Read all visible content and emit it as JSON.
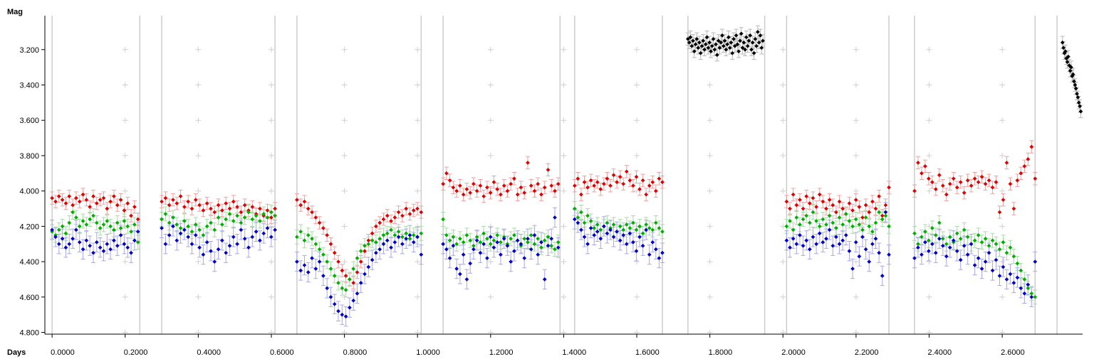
{
  "chart_data": {
    "type": "scatter",
    "title": "",
    "ylabel": "Mag",
    "xlabel": "Days",
    "xlim": [
      -0.01,
      2.82
    ],
    "ylim": [
      3.04,
      4.81
    ],
    "y_inverted": true,
    "x_ticks": [
      "0.0000",
      "0.2000",
      "0.4000",
      "0.6000",
      "0.8000",
      "1.0000",
      "1.2000",
      "1.4000",
      "1.6000",
      "1.8000",
      "2.0000",
      "2.2000",
      "2.4000",
      "2.6000"
    ],
    "y_ticks": [
      "3.200",
      "3.400",
      "3.600",
      "3.800",
      "4.000",
      "4.200",
      "4.400",
      "4.600",
      "4.800"
    ],
    "grid": true,
    "segment_bounds": [
      0.0,
      0.24,
      0.3,
      0.61,
      0.67,
      1.01,
      1.07,
      1.39,
      1.43,
      1.67,
      1.74,
      1.95,
      2.01,
      2.29,
      2.36,
      2.69,
      2.75
    ],
    "colors": {
      "red": "#e00000",
      "green": "#00b000",
      "blue": "#0000c8",
      "black": "#000000",
      "grid": "#d0d0d0",
      "bounds": "#cccccc"
    },
    "series": [
      {
        "color": "red",
        "segments": [
          {
            "x0": 0.0,
            "x1": 0.235,
            "mags": [
              4.04,
              4.06,
              4.03,
              4.05,
              4.07,
              4.03,
              4.08,
              4.04,
              4.06,
              4.02,
              4.05,
              4.09,
              4.03,
              4.07,
              4.05,
              4.04,
              4.1,
              4.06,
              4.03,
              4.08,
              4.05,
              4.11,
              4.07,
              4.14,
              4.09,
              4.16
            ]
          },
          {
            "x0": 0.3,
            "x1": 0.61,
            "mags": [
              4.06,
              4.04,
              4.08,
              4.05,
              4.07,
              4.03,
              4.09,
              4.06,
              4.1,
              4.05,
              4.08,
              4.11,
              4.07,
              4.1,
              4.12,
              4.08,
              4.11,
              4.07,
              4.1,
              4.06,
              4.09,
              4.12,
              4.08,
              4.11,
              4.09,
              4.13,
              4.1,
              4.14,
              4.11,
              4.15,
              4.1
            ]
          },
          {
            "x0": 0.67,
            "x1": 1.01,
            "mags": [
              4.05,
              4.08,
              4.06,
              4.1,
              4.12,
              4.15,
              4.18,
              4.21,
              4.25,
              4.3,
              4.35,
              4.4,
              4.45,
              4.48,
              4.5,
              4.52,
              4.46,
              4.4,
              4.34,
              4.28,
              4.24,
              4.2,
              4.18,
              4.16,
              4.14,
              4.17,
              4.15,
              4.12,
              4.14,
              4.1,
              4.13,
              4.11,
              4.1,
              4.12
            ]
          },
          {
            "x0": 1.07,
            "x1": 1.385,
            "mags": [
              3.96,
              3.9,
              3.94,
              3.98,
              4.0,
              3.97,
              4.02,
              3.99,
              4.01,
              3.96,
              4.0,
              3.97,
              4.03,
              3.98,
              4.01,
              3.95,
              3.99,
              4.02,
              3.97,
              4.0,
              3.96,
              3.93,
              4.02,
              3.98,
              4.01,
              3.84,
              3.97,
              4.0,
              3.96,
              4.02,
              3.98,
              3.88,
              3.97,
              4.0,
              3.96
            ]
          },
          {
            "x0": 1.43,
            "x1": 1.67,
            "mags": [
              3.97,
              3.93,
              4.02,
              3.95,
              3.98,
              3.94,
              3.97,
              3.95,
              3.99,
              3.96,
              3.93,
              3.97,
              3.91,
              3.95,
              3.92,
              3.96,
              3.89,
              3.94,
              3.97,
              3.92,
              3.99,
              3.94,
              4.02,
              3.97,
              3.95,
              4.0,
              3.93,
              3.95
            ]
          },
          {
            "x0": 2.01,
            "x1": 2.29,
            "mags": [
              4.06,
              4.1,
              4.02,
              4.08,
              4.05,
              4.1,
              4.03,
              4.07,
              4.04,
              4.09,
              4.02,
              4.06,
              4.1,
              4.05,
              4.08,
              4.12,
              4.06,
              4.1,
              4.13,
              4.07,
              4.11,
              4.05,
              4.09,
              4.15,
              4.08,
              4.12,
              4.06,
              4.1,
              4.03,
              4.14,
              4.08,
              3.98
            ]
          },
          {
            "x0": 2.36,
            "x1": 2.69,
            "mags": [
              4.0,
              3.84,
              3.9,
              3.86,
              3.93,
              3.95,
              3.99,
              3.91,
              3.97,
              4.02,
              3.96,
              3.93,
              3.98,
              3.95,
              4.01,
              3.94,
              3.97,
              3.93,
              3.95,
              3.92,
              3.96,
              3.94,
              3.98,
              3.95,
              4.12,
              4.05,
              3.84,
              3.96,
              4.1,
              3.94,
              3.9,
              3.86,
              3.82,
              3.75,
              3.93
            ]
          }
        ]
      },
      {
        "color": "green",
        "segments": [
          {
            "x0": 0.0,
            "x1": 0.235,
            "mags": [
              4.23,
              4.25,
              4.22,
              4.2,
              4.24,
              4.18,
              4.12,
              4.15,
              4.2,
              4.17,
              4.19,
              4.16,
              4.14,
              4.18,
              4.21,
              4.19,
              4.17,
              4.2,
              4.22,
              4.18,
              4.21,
              4.17,
              4.2,
              4.23,
              4.19,
              4.29
            ]
          },
          {
            "x0": 0.3,
            "x1": 0.61,
            "mags": [
              4.16,
              4.13,
              4.18,
              4.15,
              4.19,
              4.21,
              4.17,
              4.2,
              4.23,
              4.19,
              4.22,
              4.25,
              4.2,
              4.18,
              4.22,
              4.15,
              4.19,
              4.16,
              4.13,
              4.17,
              4.14,
              4.18,
              4.15,
              4.12,
              4.16,
              4.14,
              4.17,
              4.13,
              4.15,
              4.12,
              4.14
            ]
          },
          {
            "x0": 0.67,
            "x1": 1.01,
            "mags": [
              4.26,
              4.23,
              4.28,
              4.25,
              4.27,
              4.3,
              4.33,
              4.36,
              4.4,
              4.44,
              4.48,
              4.52,
              4.55,
              4.56,
              4.5,
              4.44,
              4.38,
              4.34,
              4.31,
              4.3,
              4.28,
              4.29,
              4.27,
              4.25,
              4.24,
              4.22,
              4.25,
              4.23,
              4.26,
              4.24,
              4.27,
              4.25,
              4.26,
              4.24
            ]
          },
          {
            "x0": 1.07,
            "x1": 1.385,
            "mags": [
              4.16,
              4.25,
              4.28,
              4.26,
              4.3,
              4.27,
              4.29,
              4.25,
              4.28,
              4.31,
              4.26,
              4.29,
              4.24,
              4.27,
              4.3,
              4.28,
              4.25,
              4.29,
              4.26,
              4.3,
              4.27,
              4.25,
              4.28,
              4.31,
              4.27,
              4.29,
              4.25,
              4.3,
              4.27,
              4.32,
              4.28,
              4.26,
              4.31,
              4.33,
              4.29
            ]
          },
          {
            "x0": 1.43,
            "x1": 1.67,
            "mags": [
              4.1,
              4.15,
              4.12,
              4.18,
              4.14,
              4.17,
              4.21,
              4.19,
              4.22,
              4.2,
              4.18,
              4.21,
              4.19,
              4.23,
              4.2,
              4.22,
              4.19,
              4.21,
              4.18,
              4.22,
              4.2,
              4.24,
              4.19,
              4.21,
              4.22,
              4.18,
              4.21,
              4.23
            ]
          },
          {
            "x0": 2.01,
            "x1": 2.29,
            "mags": [
              4.2,
              4.17,
              4.22,
              4.15,
              4.19,
              4.16,
              4.14,
              4.18,
              4.12,
              4.17,
              4.2,
              4.16,
              4.19,
              4.14,
              4.18,
              4.21,
              4.15,
              4.19,
              4.13,
              4.17,
              4.2,
              4.16,
              4.19,
              4.22,
              4.15,
              4.2,
              4.23,
              4.18,
              4.12,
              4.16,
              4.14,
              4.2
            ]
          },
          {
            "x0": 2.36,
            "x1": 2.69,
            "mags": [
              4.24,
              4.3,
              4.26,
              4.23,
              4.28,
              4.21,
              4.25,
              4.18,
              4.27,
              4.3,
              4.26,
              4.29,
              4.24,
              4.27,
              4.22,
              4.26,
              4.3,
              4.28,
              4.25,
              4.29,
              4.27,
              4.31,
              4.28,
              4.3,
              4.33,
              4.29,
              4.35,
              4.32,
              4.37,
              4.41,
              4.45,
              4.5,
              4.55,
              4.58,
              4.6
            ]
          }
        ]
      },
      {
        "color": "blue",
        "segments": [
          {
            "x0": 0.0,
            "x1": 0.235,
            "mags": [
              4.22,
              4.26,
              4.3,
              4.27,
              4.32,
              4.3,
              4.27,
              4.22,
              4.29,
              4.33,
              4.28,
              4.31,
              4.35,
              4.29,
              4.32,
              4.34,
              4.3,
              4.33,
              4.28,
              4.31,
              4.25,
              4.3,
              4.32,
              4.35,
              4.28,
              4.23
            ]
          },
          {
            "x0": 0.3,
            "x1": 0.61,
            "mags": [
              4.21,
              4.3,
              4.25,
              4.2,
              4.28,
              4.24,
              4.22,
              4.26,
              4.3,
              4.25,
              4.32,
              4.36,
              4.29,
              4.34,
              4.4,
              4.33,
              4.28,
              4.35,
              4.31,
              4.26,
              4.3,
              4.22,
              4.27,
              4.32,
              4.26,
              4.23,
              4.28,
              4.24,
              4.21,
              4.26,
              4.22
            ]
          },
          {
            "x0": 0.67,
            "x1": 1.01,
            "mags": [
              4.4,
              4.45,
              4.42,
              4.46,
              4.38,
              4.44,
              4.4,
              4.48,
              4.55,
              4.6,
              4.64,
              4.68,
              4.7,
              4.71,
              4.66,
              4.62,
              4.58,
              4.52,
              4.47,
              4.43,
              4.39,
              4.35,
              4.33,
              4.3,
              4.28,
              4.32,
              4.29,
              4.26,
              4.3,
              4.27,
              4.25,
              4.29,
              4.26,
              4.36
            ]
          },
          {
            "x0": 1.07,
            "x1": 1.385,
            "mags": [
              4.3,
              4.33,
              4.38,
              4.31,
              4.44,
              4.47,
              4.36,
              4.5,
              4.41,
              4.33,
              4.28,
              4.35,
              4.3,
              4.38,
              4.26,
              4.32,
              4.29,
              4.36,
              4.27,
              4.31,
              4.4,
              4.34,
              4.28,
              4.3,
              4.38,
              4.27,
              4.33,
              4.25,
              4.36,
              4.29,
              4.5,
              4.31,
              4.27,
              4.15,
              4.32
            ]
          },
          {
            "x0": 1.43,
            "x1": 1.67,
            "mags": [
              4.16,
              4.18,
              4.22,
              4.26,
              4.3,
              4.21,
              4.25,
              4.23,
              4.27,
              4.2,
              4.24,
              4.22,
              4.26,
              4.23,
              4.28,
              4.25,
              4.3,
              4.24,
              4.29,
              4.34,
              4.26,
              4.31,
              4.22,
              4.36,
              4.29,
              4.33,
              4.38,
              4.35
            ]
          },
          {
            "x0": 2.01,
            "x1": 2.29,
            "mags": [
              4.28,
              4.32,
              4.27,
              4.3,
              4.25,
              4.31,
              4.28,
              4.33,
              4.26,
              4.3,
              4.24,
              4.29,
              4.27,
              4.22,
              4.31,
              4.26,
              4.3,
              4.28,
              4.25,
              4.34,
              4.44,
              4.29,
              4.37,
              4.26,
              4.33,
              4.4,
              4.3,
              4.27,
              4.35,
              4.48,
              4.12,
              4.36
            ]
          },
          {
            "x0": 2.36,
            "x1": 2.69,
            "mags": [
              4.38,
              4.32,
              4.36,
              4.29,
              4.34,
              4.3,
              4.35,
              4.27,
              4.31,
              4.37,
              4.32,
              4.28,
              4.34,
              4.39,
              4.31,
              4.36,
              4.3,
              4.42,
              4.38,
              4.44,
              4.4,
              4.35,
              4.45,
              4.39,
              4.48,
              4.43,
              4.5,
              4.47,
              4.52,
              4.49,
              4.55,
              4.58,
              4.53,
              4.6,
              4.4
            ]
          }
        ]
      },
      {
        "color": "black",
        "segments": [
          {
            "x0": 1.74,
            "x1": 1.945,
            "mags": [
              3.14,
              3.16,
              3.13,
              3.18,
              3.15,
              3.21,
              3.17,
              3.14,
              3.19,
              3.16,
              3.22,
              3.18,
              3.15,
              3.2,
              3.17,
              3.13,
              3.19,
              3.16,
              3.21,
              3.18,
              3.14,
              3.2,
              3.17,
              3.23,
              3.15,
              3.19,
              3.16,
              3.12,
              3.18,
              3.15,
              3.2,
              3.17,
              3.13,
              3.19,
              3.16,
              3.22,
              3.14,
              3.18,
              3.12,
              3.17,
              3.21,
              3.15,
              3.11,
              3.19,
              3.16,
              3.2,
              3.13,
              3.18,
              3.15,
              3.12,
              3.2,
              3.16,
              3.22,
              3.14,
              3.18,
              3.1,
              3.16,
              3.12,
              3.19,
              3.15
            ]
          },
          {
            "x0": 2.765,
            "x1": 2.815,
            "mags": [
              3.16,
              3.19,
              3.22,
              3.21,
              3.25,
              3.27,
              3.24,
              3.29,
              3.32,
              3.3,
              3.35,
              3.34,
              3.38,
              3.4,
              3.42,
              3.45,
              3.47,
              3.5,
              3.52,
              3.55
            ]
          }
        ]
      }
    ]
  }
}
